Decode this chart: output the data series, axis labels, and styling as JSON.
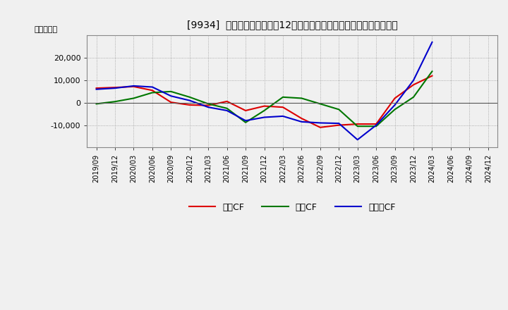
{
  "title": "[9934]  キャッシュフローの12か月移動合計の対前年同期増減額の推移",
  "ylabel": "（百万円）",
  "background_color": "#f0f0f0",
  "plot_bg_color": "#f0f0f0",
  "grid_color": "#999999",
  "x_labels": [
    "2019/09",
    "2019/12",
    "2020/03",
    "2020/06",
    "2020/09",
    "2020/12",
    "2021/03",
    "2021/06",
    "2021/09",
    "2021/12",
    "2022/03",
    "2022/06",
    "2022/09",
    "2022/12",
    "2023/03",
    "2023/06",
    "2023/09",
    "2023/12",
    "2024/03",
    "2024/06",
    "2024/09",
    "2024/12"
  ],
  "operating_cf": [
    6500,
    6800,
    7200,
    5500,
    200,
    -1000,
    -1200,
    600,
    -3500,
    -1500,
    -2000,
    -7000,
    -11000,
    -10000,
    -9500,
    -9500,
    2000,
    8000,
    12000,
    null,
    null,
    null
  ],
  "investing_cf": [
    -500,
    500,
    2000,
    4500,
    5000,
    2500,
    -500,
    -2500,
    -8800,
    -3500,
    2500,
    2000,
    -500,
    -3000,
    -10500,
    -10500,
    -3000,
    2500,
    14000,
    null,
    null,
    null
  ],
  "free_cf": [
    6000,
    6500,
    7500,
    7000,
    3000,
    1000,
    -2000,
    -3500,
    -8000,
    -6500,
    -6000,
    -8500,
    -9000,
    -9200,
    -16500,
    -10000,
    -1000,
    10000,
    27000,
    null,
    null,
    null
  ],
  "operating_color": "#dd0000",
  "investing_color": "#007700",
  "free_color": "#0000cc",
  "ylim": [
    -20000,
    30000
  ],
  "yticks": [
    -10000,
    0,
    10000,
    20000
  ],
  "legend_labels": [
    "営業CF",
    "投資CF",
    "フリーCF"
  ]
}
